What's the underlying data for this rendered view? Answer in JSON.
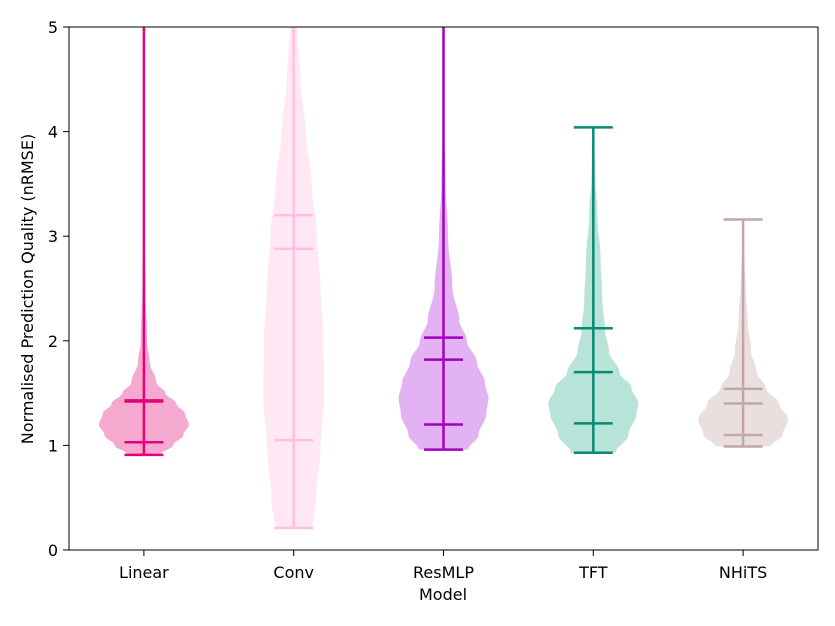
{
  "chart_data": {
    "type": "violin",
    "xlabel": "Model",
    "ylabel": "Normalised Prediction Quality (nRMSE)",
    "ylim": [
      0,
      5
    ],
    "yticks": [
      "0",
      "1",
      "2",
      "3",
      "4",
      "5"
    ],
    "categories": [
      "Linear",
      "Conv",
      "ResMLP",
      "TFT",
      "NHiTS"
    ],
    "series": [
      {
        "category": "Linear",
        "color": "#e7007e",
        "fill": "#f6a9cf",
        "min": 0.91,
        "max": 5.0,
        "median": 1.03,
        "q_upper": 1.43,
        "extra": 1.42,
        "violin_max": 5.0,
        "profile": [
          [
            0.91,
            0.35
          ],
          [
            1.0,
            0.65
          ],
          [
            1.1,
            0.88
          ],
          [
            1.2,
            1.0
          ],
          [
            1.3,
            0.92
          ],
          [
            1.4,
            0.72
          ],
          [
            1.5,
            0.48
          ],
          [
            1.6,
            0.28
          ],
          [
            1.8,
            0.13
          ],
          [
            2.0,
            0.07
          ],
          [
            2.5,
            0.035
          ],
          [
            3.0,
            0.02
          ],
          [
            4.0,
            0.012
          ],
          [
            5.0,
            0.008
          ]
        ]
      },
      {
        "category": "Conv",
        "color": "#ffbfe0",
        "fill": "#ffe8f4",
        "min": 0.21,
        "max": 5.0,
        "median": 1.05,
        "q_upper": 2.88,
        "extra": 3.2,
        "violin_max": 5.0,
        "profile": [
          [
            0.21,
            0.42
          ],
          [
            0.5,
            0.5
          ],
          [
            1.0,
            0.6
          ],
          [
            1.5,
            0.68
          ],
          [
            2.0,
            0.66
          ],
          [
            2.5,
            0.6
          ],
          [
            3.0,
            0.52
          ],
          [
            3.5,
            0.4
          ],
          [
            4.0,
            0.27
          ],
          [
            4.5,
            0.15
          ],
          [
            5.0,
            0.08
          ]
        ]
      },
      {
        "category": "ResMLP",
        "color": "#a100c1",
        "fill": "#e2b2f3",
        "min": 0.96,
        "max": 5.0,
        "median": 1.2,
        "q_upper": 2.03,
        "extra": 1.82,
        "violin_max": 5.0,
        "profile": [
          [
            0.96,
            0.55
          ],
          [
            1.1,
            0.78
          ],
          [
            1.3,
            0.95
          ],
          [
            1.45,
            1.0
          ],
          [
            1.6,
            0.92
          ],
          [
            1.8,
            0.74
          ],
          [
            2.0,
            0.52
          ],
          [
            2.2,
            0.35
          ],
          [
            2.5,
            0.2
          ],
          [
            3.0,
            0.1
          ],
          [
            3.5,
            0.05
          ],
          [
            4.0,
            0.02
          ],
          [
            5.0,
            0.01
          ]
        ]
      },
      {
        "category": "TFT",
        "color": "#0b8a73",
        "fill": "#b8e3d8",
        "min": 0.93,
        "max": 4.04,
        "median": 1.21,
        "q_upper": 2.12,
        "extra": 1.7,
        "violin_max": 4.04,
        "profile": [
          [
            0.93,
            0.5
          ],
          [
            1.1,
            0.78
          ],
          [
            1.3,
            0.96
          ],
          [
            1.4,
            1.0
          ],
          [
            1.55,
            0.85
          ],
          [
            1.7,
            0.58
          ],
          [
            1.9,
            0.35
          ],
          [
            2.1,
            0.26
          ],
          [
            2.4,
            0.2
          ],
          [
            2.8,
            0.16
          ],
          [
            3.2,
            0.09
          ],
          [
            3.6,
            0.04
          ],
          [
            4.04,
            0.01
          ]
        ]
      },
      {
        "category": "NHiTS",
        "color": "#c2a6aa",
        "fill": "#e9dfdf",
        "min": 0.99,
        "max": 3.16,
        "median": 1.1,
        "q_upper": 1.54,
        "extra": 1.4,
        "violin_max": 3.16,
        "profile": [
          [
            0.99,
            0.62
          ],
          [
            1.1,
            0.88
          ],
          [
            1.25,
            1.0
          ],
          [
            1.4,
            0.8
          ],
          [
            1.55,
            0.5
          ],
          [
            1.7,
            0.3
          ],
          [
            1.9,
            0.18
          ],
          [
            2.2,
            0.1
          ],
          [
            2.5,
            0.06
          ],
          [
            2.8,
            0.03
          ],
          [
            3.16,
            0.01
          ]
        ]
      }
    ]
  }
}
